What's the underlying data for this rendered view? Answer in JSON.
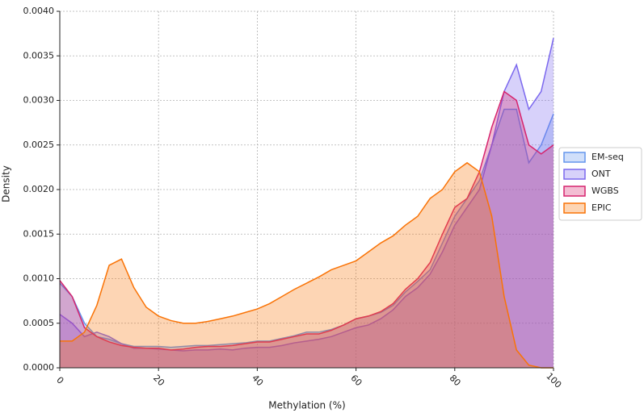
{
  "chart_data": {
    "type": "density-area",
    "xlabel": "Methylation (%)",
    "ylabel": "Density",
    "x": [
      0,
      2.5,
      5,
      7.5,
      10,
      12.5,
      15,
      17.5,
      20,
      22.5,
      25,
      27.5,
      30,
      32.5,
      35,
      37.5,
      40,
      42.5,
      45,
      47.5,
      50,
      52.5,
      55,
      57.5,
      60,
      62.5,
      65,
      67.5,
      70,
      72.5,
      75,
      77.5,
      80,
      82.5,
      85,
      87.5,
      90,
      92.5,
      95,
      97.5,
      100
    ],
    "series": [
      {
        "name": "EM-seq",
        "color": "#6495ed",
        "values": [
          0.00095,
          0.0008,
          0.0005,
          0.00035,
          0.00032,
          0.00027,
          0.00024,
          0.00024,
          0.00024,
          0.00023,
          0.00024,
          0.00025,
          0.00025,
          0.00026,
          0.00027,
          0.00028,
          0.0003,
          0.0003,
          0.00033,
          0.00036,
          0.0004,
          0.0004,
          0.00043,
          0.00048,
          0.00055,
          0.00058,
          0.00062,
          0.0007,
          0.00085,
          0.00097,
          0.0011,
          0.0014,
          0.0017,
          0.0019,
          0.0021,
          0.0025,
          0.0029,
          0.0029,
          0.0023,
          0.0025,
          0.00285
        ]
      },
      {
        "name": "ONT",
        "color": "#7b68ee",
        "values": [
          0.0006,
          0.0005,
          0.00035,
          0.0004,
          0.00035,
          0.00027,
          0.00022,
          0.00022,
          0.00021,
          0.0002,
          0.00019,
          0.0002,
          0.0002,
          0.00021,
          0.0002,
          0.00022,
          0.00023,
          0.00023,
          0.00025,
          0.00028,
          0.0003,
          0.00032,
          0.00035,
          0.0004,
          0.00045,
          0.00048,
          0.00055,
          0.00065,
          0.0008,
          0.0009,
          0.00105,
          0.0013,
          0.0016,
          0.0018,
          0.002,
          0.0025,
          0.0031,
          0.0034,
          0.0029,
          0.0031,
          0.0037
        ]
      },
      {
        "name": "WGBS",
        "color": "#d6246e",
        "values": [
          0.00098,
          0.0008,
          0.00045,
          0.00035,
          0.00029,
          0.00025,
          0.00023,
          0.00022,
          0.00022,
          0.0002,
          0.00021,
          0.00023,
          0.00024,
          0.00024,
          0.00025,
          0.00027,
          0.00029,
          0.00029,
          0.00032,
          0.00035,
          0.00038,
          0.00038,
          0.00042,
          0.00048,
          0.00055,
          0.00058,
          0.00063,
          0.00072,
          0.00088,
          0.001,
          0.00118,
          0.0015,
          0.0018,
          0.0019,
          0.0022,
          0.0027,
          0.0031,
          0.003,
          0.0025,
          0.0024,
          0.0025
        ]
      },
      {
        "name": "EPIC",
        "color": "#f97306",
        "values": [
          0.0003,
          0.0003,
          0.0004,
          0.0007,
          0.00115,
          0.00122,
          0.0009,
          0.00068,
          0.00058,
          0.00053,
          0.0005,
          0.0005,
          0.00052,
          0.00055,
          0.00058,
          0.00062,
          0.00066,
          0.00072,
          0.0008,
          0.00088,
          0.00095,
          0.00102,
          0.0011,
          0.00115,
          0.0012,
          0.0013,
          0.0014,
          0.00148,
          0.0016,
          0.0017,
          0.0019,
          0.002,
          0.0022,
          0.0023,
          0.0022,
          0.0017,
          0.0008,
          0.0002,
          3e-05,
          0,
          0
        ]
      }
    ],
    "xlim": [
      0,
      100
    ],
    "xticks": [
      0,
      20,
      40,
      60,
      80,
      100
    ],
    "ylim": [
      0,
      0.004
    ],
    "yticks": [
      {
        "value": 0,
        "label": "0.0000"
      },
      {
        "value": 0.0005,
        "label": "0.0005"
      },
      {
        "value": 0.001,
        "label": "0.0010"
      },
      {
        "value": 0.0015,
        "label": "0.0015"
      },
      {
        "value": 0.002,
        "label": "0.0020"
      },
      {
        "value": 0.0025,
        "label": "0.0025"
      },
      {
        "value": 0.003,
        "label": "0.0030"
      },
      {
        "value": 0.0035,
        "label": "0.0035"
      },
      {
        "value": 0.004,
        "label": "0.0040"
      }
    ],
    "grid": true,
    "legend": "right"
  }
}
